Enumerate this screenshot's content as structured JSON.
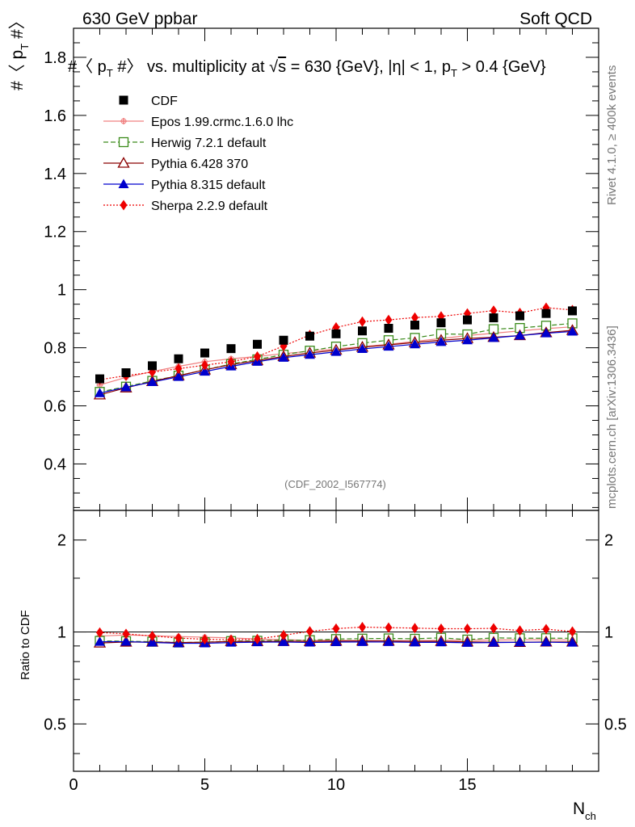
{
  "header": {
    "left": "630 GeV ppbar",
    "right": "Soft QCD"
  },
  "side_labels": {
    "rivet": "Rivet 4.1.0, ≥ 400k events",
    "mcplots": "mcplots.cern.ch [arXiv:1306.3436]"
  },
  "chart_data": {
    "type": "scatter",
    "title_parts": {
      "a": "#〈 p",
      "a_sub": "T",
      "b": " #〉 vs. multiplicity at ",
      "sqrt": "√",
      "s": "s",
      "c": " = 630 {GeV}, |η| < 1, p",
      "c_sub": "T",
      "d": " > 0.4 {GeV}"
    },
    "ylabel_parts": {
      "a": "#〈 p",
      "sub": "T",
      "b": " #〉"
    },
    "xlabel_parts": {
      "main": "N",
      "sub": "ch"
    },
    "ratio_ylabel": "Ratio to CDF",
    "dataset_label": "(CDF_2002_I567774)",
    "xlim": [
      0,
      20
    ],
    "ylim": [
      0.24,
      1.9
    ],
    "ratio_ylim": [
      0.35,
      2.5
    ],
    "x_ticks": [
      "0",
      "5",
      "10",
      "15"
    ],
    "x_tick_values": [
      0,
      5,
      10,
      15
    ],
    "y_ticks": [
      "0.4",
      "0.6",
      "0.8",
      "1",
      "1.2",
      "1.4",
      "1.6",
      "1.8"
    ],
    "y_tick_values": [
      0.4,
      0.6,
      0.8,
      1.0,
      1.2,
      1.4,
      1.6,
      1.8
    ],
    "ratio_ticks": [
      "0.5",
      "1",
      "2"
    ],
    "ratio_tick_values": [
      0.5,
      1,
      2
    ],
    "x": [
      1,
      2,
      3,
      4,
      5,
      6,
      7,
      8,
      9,
      10,
      11,
      12,
      13,
      14,
      15,
      16,
      17,
      18,
      19
    ],
    "series": [
      {
        "name": "CDF",
        "color": "#000000",
        "marker": "square-filled",
        "line": "none",
        "values": [
          0.693,
          0.714,
          0.738,
          0.762,
          0.782,
          0.797,
          0.812,
          0.826,
          0.84,
          0.848,
          0.858,
          0.867,
          0.878,
          0.886,
          0.896,
          0.903,
          0.91,
          0.918,
          0.927
        ]
      },
      {
        "name": "Epos 1.99.crmc.1.6.0 lhc",
        "color": "#f08080",
        "marker": "cross",
        "line": "solid",
        "values": [
          0.672,
          0.698,
          0.718,
          0.736,
          0.752,
          0.762,
          0.77,
          0.78,
          0.788,
          0.796,
          0.804,
          0.812,
          0.822,
          0.832,
          0.842,
          0.85,
          0.858,
          0.866,
          0.872
        ]
      },
      {
        "name": "Herwig 7.2.1 default",
        "color": "#3a8a1a",
        "marker": "square-open",
        "line": "dashed",
        "values": [
          0.648,
          0.666,
          0.686,
          0.704,
          0.724,
          0.744,
          0.76,
          0.776,
          0.79,
          0.804,
          0.816,
          0.826,
          0.834,
          0.848,
          0.846,
          0.864,
          0.868,
          0.876,
          0.884
        ]
      },
      {
        "name": "Pythia 6.428 370",
        "color": "#8b0000",
        "marker": "triangle-open",
        "line": "solid",
        "values": [
          0.638,
          0.662,
          0.684,
          0.704,
          0.724,
          0.742,
          0.756,
          0.77,
          0.782,
          0.792,
          0.802,
          0.81,
          0.818,
          0.826,
          0.832,
          0.836,
          0.842,
          0.852,
          0.86
        ]
      },
      {
        "name": "Pythia 8.315 default",
        "color": "#0000cd",
        "marker": "triangle-filled",
        "line": "solid",
        "values": [
          0.644,
          0.664,
          0.682,
          0.7,
          0.718,
          0.736,
          0.752,
          0.766,
          0.776,
          0.786,
          0.796,
          0.804,
          0.812,
          0.82,
          0.826,
          0.834,
          0.842,
          0.85,
          0.856
        ]
      },
      {
        "name": "Sherpa 2.2.9 default",
        "color": "#ee0000",
        "marker": "diamond-filled",
        "line": "dotted",
        "values": [
          0.69,
          0.704,
          0.716,
          0.728,
          0.74,
          0.752,
          0.77,
          0.806,
          0.844,
          0.87,
          0.89,
          0.896,
          0.904,
          0.908,
          0.918,
          0.928,
          0.92,
          0.938,
          0.93
        ]
      }
    ]
  }
}
